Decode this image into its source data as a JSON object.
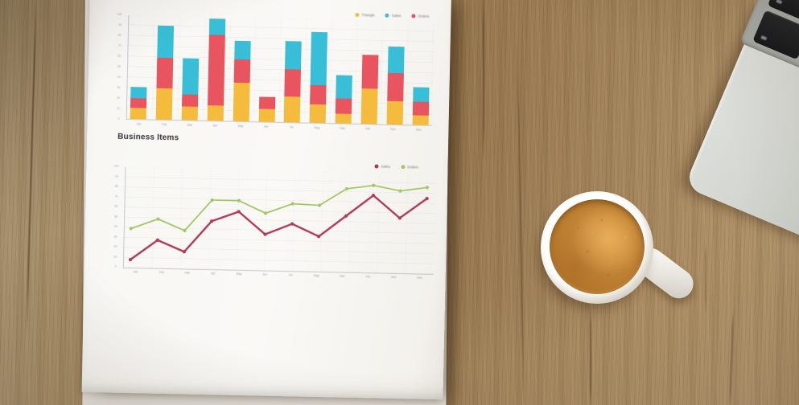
{
  "scene": {
    "objects": [
      "wooden-desk",
      "printed-report-paper",
      "coffee-cup",
      "laptop-corner"
    ]
  },
  "paper": {
    "line_chart_title": "Business Items"
  },
  "colors": {
    "bar_yellow": "#f5bb3c",
    "bar_red": "#e8555e",
    "bar_teal": "#38bed6",
    "line_red": "#b03a5c",
    "line_green": "#a4c765",
    "paper": "#f8f7f4",
    "wood_mid": "#9c7d55",
    "coffee": "#bd7f31",
    "laptop_silver": "#d6d8d3"
  },
  "chart_data": [
    {
      "type": "bar",
      "stacked": true,
      "title": "",
      "categories": [
        "Jan",
        "Feb",
        "Mar",
        "Apr",
        "May",
        "Jun",
        "Jul",
        "Aug",
        "Sep",
        "Oct",
        "Nov",
        "Dec"
      ],
      "series": [
        {
          "name": "Triangle",
          "color": "#f5bb3c",
          "values": [
            11,
            30,
            13,
            15,
            37,
            12,
            25,
            18,
            9,
            34,
            22,
            9
          ]
        },
        {
          "name": "Orders",
          "color": "#e8555e",
          "values": [
            9,
            29,
            12,
            67,
            22,
            12,
            26,
            18,
            15,
            32,
            27,
            13
          ]
        },
        {
          "name": "Sales",
          "color": "#38bed6",
          "values": [
            11,
            31,
            34,
            16,
            18,
            0,
            27,
            51,
            22,
            0,
            26,
            14
          ]
        }
      ],
      "legend": [
        {
          "label": "Triangle",
          "color": "#f5bb3c"
        },
        {
          "label": "Sales",
          "color": "#38bed6"
        },
        {
          "label": "Orders",
          "color": "#e8555e"
        }
      ],
      "ylim": [
        0,
        100
      ],
      "ytick_step": 10,
      "legend_position": "top-right",
      "grid": true,
      "xlabel": "",
      "ylabel": ""
    },
    {
      "type": "line",
      "title": "Business Items",
      "categories": [
        "Jan",
        "Feb",
        "Mar",
        "Apr",
        "May",
        "Jun",
        "Jul",
        "Aug",
        "Sep",
        "Oct",
        "Nov",
        "Dec"
      ],
      "series": [
        {
          "name": "Sales",
          "color": "#b03a5c",
          "values": [
            8,
            28,
            17,
            48,
            58,
            36,
            47,
            35,
            56,
            77,
            55,
            75
          ]
        },
        {
          "name": "Orders",
          "color": "#a4c765",
          "values": [
            39,
            49,
            38,
            69,
            69,
            57,
            67,
            66,
            83,
            87,
            82,
            86
          ]
        }
      ],
      "legend": [
        {
          "label": "Sales",
          "color": "#b03a5c"
        },
        {
          "label": "Orders",
          "color": "#a4c765"
        }
      ],
      "ylim": [
        0,
        100
      ],
      "ytick_step": 10,
      "legend_position": "top-right",
      "grid": true,
      "xlabel": "",
      "ylabel": ""
    }
  ]
}
